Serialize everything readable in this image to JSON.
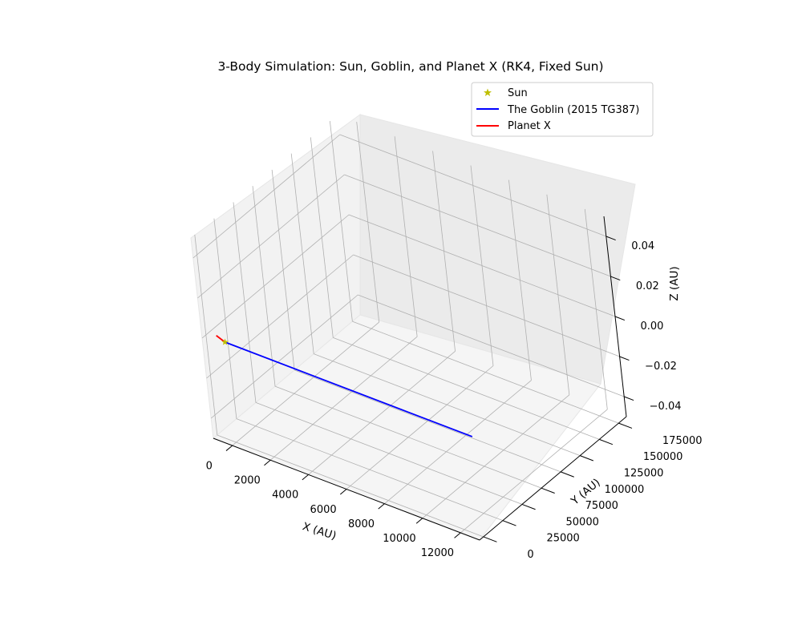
{
  "chart_data": {
    "type": "line3d",
    "title": "3-Body Simulation: Sun, Goblin, and Planet X (RK4, Fixed Sun)",
    "xlabel": "X (AU)",
    "ylabel": "Y (AU)",
    "zlabel": "Z (AU)",
    "xlim": [
      -1000,
      13000
    ],
    "ylim": [
      -5000,
      185000
    ],
    "zlim": [
      -0.05,
      0.05
    ],
    "xticks": [
      "0",
      "2000",
      "4000",
      "6000",
      "8000",
      "10000",
      "12000"
    ],
    "yticks": [
      "0",
      "25000",
      "50000",
      "75000",
      "100000",
      "125000",
      "150000",
      "175000"
    ],
    "zticks": [
      "−0.04",
      "−0.02",
      "0.00",
      "0.02",
      "0.04"
    ],
    "grid": true,
    "legend_position": "top-right",
    "series": [
      {
        "name": "Sun",
        "kind": "marker",
        "marker": "star",
        "color": "#bfbf00",
        "points": [
          [
            0,
            0,
            0
          ]
        ]
      },
      {
        "name": "The Goblin (2015 TG387)",
        "kind": "line",
        "color": "#0000ff",
        "points": [
          [
            0,
            0,
            0
          ],
          [
            13000,
            0,
            0
          ]
        ]
      },
      {
        "name": "Planet X",
        "kind": "line",
        "color": "#ff0000",
        "points": [
          [
            -600,
            3500,
            0
          ],
          [
            0,
            0,
            0
          ]
        ]
      }
    ]
  }
}
